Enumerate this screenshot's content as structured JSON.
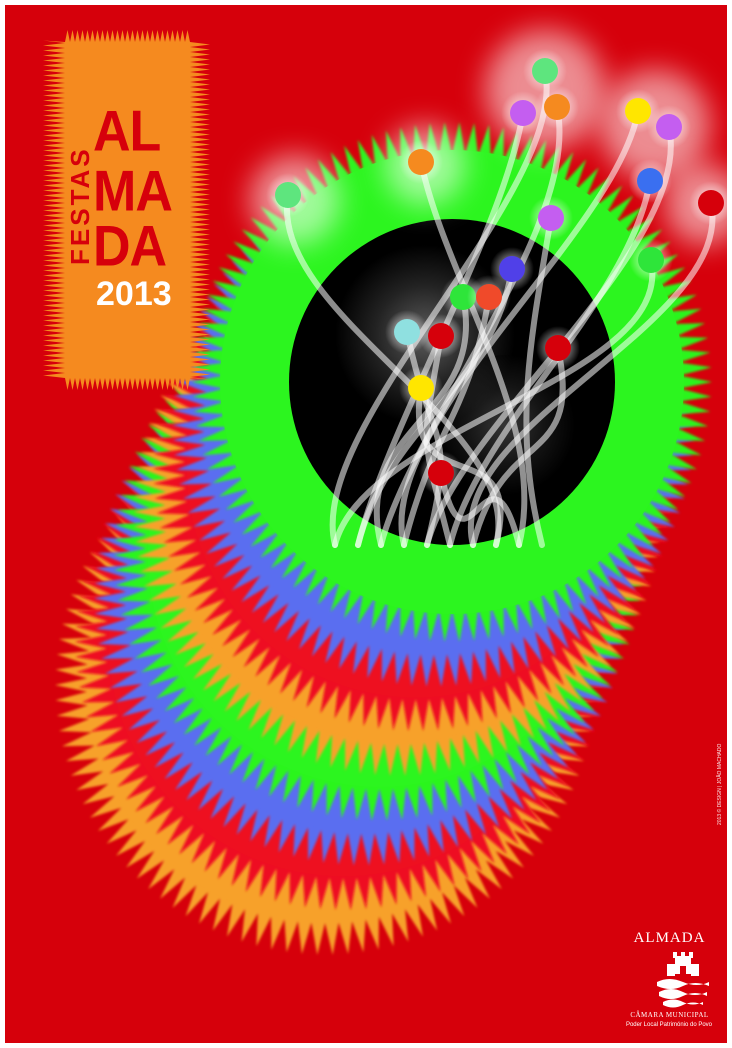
{
  "poster": {
    "title_line1": "AL",
    "title_line2": "MA",
    "title_line3": "DA",
    "title_vertical": "FESTAS",
    "year": "2013",
    "credit": "2013 © DESIGN | JOÃO MACHADO",
    "logo": {
      "name": "ALMADA",
      "subtitle": "CÂMARA MUNICIPAL",
      "tagline": "Poder Local Património do Povo",
      "icon": "castle-waves-icon"
    }
  },
  "colors": {
    "background": "#d6000b",
    "title_panel": "#f58a1f",
    "ring_green": "#2cf51f",
    "ring_blue": "#5a6ef0",
    "ring_red": "#ee1020",
    "ring_orange": "#f7a12a",
    "title_text": "#d6000b",
    "year_text": "#ffffff"
  }
}
